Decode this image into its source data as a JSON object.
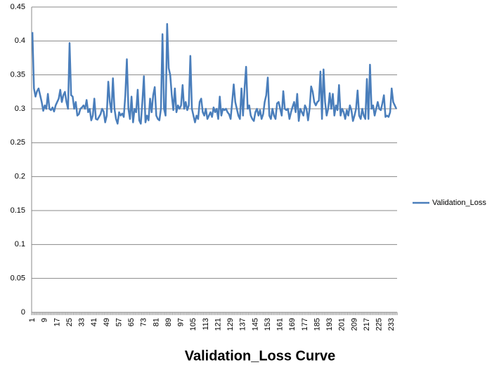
{
  "chart_data": {
    "type": "line",
    "title": "Validation_Loss Curve",
    "categories": [
      1,
      null,
      null,
      null,
      null,
      null,
      null,
      null,
      9,
      null,
      null,
      null,
      null,
      null,
      null,
      null,
      17,
      null,
      null,
      null,
      null,
      null,
      null,
      null,
      25,
      null,
      null,
      null,
      null,
      null,
      null,
      null,
      33,
      null,
      null,
      null,
      null,
      null,
      null,
      null,
      41,
      null,
      null,
      null,
      null,
      null,
      null,
      null,
      49,
      null,
      null,
      null,
      null,
      null,
      null,
      null,
      57,
      null,
      null,
      null,
      null,
      null,
      null,
      null,
      65,
      null,
      null,
      null,
      null,
      null,
      null,
      null,
      73,
      null,
      null,
      null,
      null,
      null,
      null,
      null,
      81,
      null,
      null,
      null,
      null,
      null,
      null,
      null,
      89,
      null,
      null,
      null,
      null,
      null,
      null,
      null,
      97,
      null,
      null,
      null,
      null,
      null,
      null,
      null,
      105,
      null,
      null,
      null,
      null,
      null,
      null,
      null,
      113,
      null,
      null,
      null,
      null,
      null,
      null,
      null,
      121,
      null,
      null,
      null,
      null,
      null,
      null,
      null,
      129,
      null,
      null,
      null,
      null,
      null,
      null,
      null,
      137,
      null,
      null,
      null,
      null,
      null,
      null,
      null,
      145,
      null,
      null,
      null,
      null,
      null,
      null,
      null,
      153,
      null,
      null,
      null,
      null,
      null,
      null,
      null,
      161,
      null,
      null,
      null,
      null,
      null,
      null,
      null,
      169,
      null,
      null,
      null,
      null,
      null,
      null,
      null,
      177,
      null,
      null,
      null,
      null,
      null,
      null,
      null,
      185,
      null,
      null,
      null,
      null,
      null,
      null,
      null,
      193,
      null,
      null,
      null,
      null,
      null,
      null,
      null,
      201,
      null,
      null,
      null,
      null,
      null,
      null,
      null,
      209,
      null,
      null,
      null,
      null,
      null,
      null,
      null,
      217,
      null,
      null,
      null,
      null,
      null,
      null,
      null,
      225,
      null,
      null,
      null,
      null,
      null,
      null,
      null,
      233,
      null,
      null,
      null
    ],
    "series": [
      {
        "name": "Validation_Loss",
        "color": "#4a7ebb",
        "values": [
          0.413,
          0.33,
          0.318,
          0.326,
          0.33,
          0.32,
          0.31,
          0.297,
          0.305,
          0.3,
          0.322,
          0.3,
          0.298,
          0.302,
          0.296,
          0.305,
          0.31,
          0.315,
          0.328,
          0.31,
          0.32,
          0.325,
          0.31,
          0.3,
          0.397,
          0.32,
          0.318,
          0.3,
          0.31,
          0.29,
          0.292,
          0.3,
          0.302,
          0.305,
          0.3,
          0.313,
          0.295,
          0.3,
          0.283,
          0.29,
          0.315,
          0.285,
          0.284,
          0.288,
          0.292,
          0.3,
          0.296,
          0.28,
          0.29,
          0.34,
          0.31,
          0.295,
          0.345,
          0.3,
          0.285,
          0.278,
          0.295,
          0.29,
          0.293,
          0.288,
          0.32,
          0.373,
          0.3,
          0.285,
          0.318,
          0.28,
          0.3,
          0.295,
          0.328,
          0.283,
          0.278,
          0.31,
          0.348,
          0.28,
          0.29,
          0.283,
          0.315,
          0.295,
          0.32,
          0.332,
          0.29,
          0.285,
          0.283,
          0.3,
          0.41,
          0.3,
          0.29,
          0.425,
          0.36,
          0.35,
          0.32,
          0.298,
          0.33,
          0.295,
          0.305,
          0.3,
          0.305,
          0.335,
          0.3,
          0.31,
          0.298,
          0.305,
          0.378,
          0.3,
          0.29,
          0.28,
          0.29,
          0.285,
          0.31,
          0.315,
          0.295,
          0.29,
          0.3,
          0.285,
          0.29,
          0.295,
          0.288,
          0.302,
          0.295,
          0.3,
          0.285,
          0.318,
          0.29,
          0.3,
          0.298,
          0.3,
          0.295,
          0.292,
          0.285,
          0.31,
          0.336,
          0.31,
          0.3,
          0.29,
          0.285,
          0.33,
          0.29,
          0.33,
          0.362,
          0.3,
          0.305,
          0.29,
          0.285,
          0.282,
          0.295,
          0.3,
          0.29,
          0.298,
          0.285,
          0.292,
          0.31,
          0.32,
          0.346,
          0.29,
          0.285,
          0.3,
          0.29,
          0.285,
          0.308,
          0.31,
          0.3,
          0.29,
          0.326,
          0.3,
          0.298,
          0.3,
          0.285,
          0.295,
          0.303,
          0.31,
          0.295,
          0.322,
          0.282,
          0.3,
          0.295,
          0.29,
          0.305,
          0.3,
          0.283,
          0.3,
          0.333,
          0.325,
          0.31,
          0.305,
          0.31,
          0.312,
          0.355,
          0.285,
          0.358,
          0.31,
          0.29,
          0.3,
          0.323,
          0.3,
          0.322,
          0.29,
          0.305,
          0.298,
          0.335,
          0.29,
          0.3,
          0.295,
          0.285,
          0.298,
          0.29,
          0.305,
          0.298,
          0.282,
          0.29,
          0.3,
          0.327,
          0.29,
          0.285,
          0.3,
          0.29,
          0.285,
          0.344,
          0.285,
          0.365,
          0.3,
          0.305,
          0.29,
          0.3,
          0.31,
          0.3,
          0.298,
          0.308,
          0.32,
          0.288,
          0.29,
          0.288,
          0.295,
          0.33,
          0.31,
          0.305,
          0.3
        ]
      }
    ],
    "ylim": [
      0,
      0.45
    ],
    "yticks": [
      0,
      0.05,
      0.1,
      0.15,
      0.2,
      0.25,
      0.3,
      0.35,
      0.4,
      0.45
    ],
    "grid": true,
    "legend": "right"
  }
}
